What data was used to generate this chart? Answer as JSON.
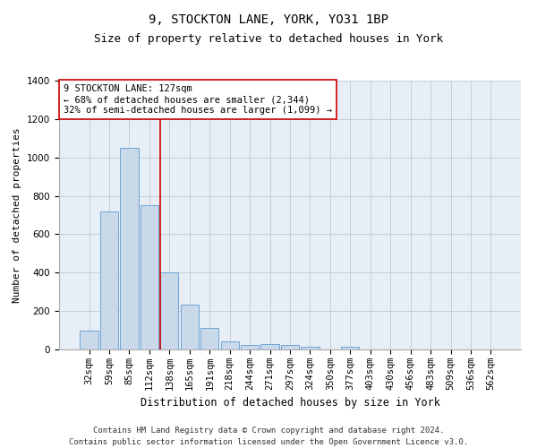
{
  "title": "9, STOCKTON LANE, YORK, YO31 1BP",
  "subtitle": "Size of property relative to detached houses in York",
  "xlabel": "Distribution of detached houses by size in York",
  "ylabel": "Number of detached properties",
  "categories": [
    "32sqm",
    "59sqm",
    "85sqm",
    "112sqm",
    "138sqm",
    "165sqm",
    "191sqm",
    "218sqm",
    "244sqm",
    "271sqm",
    "297sqm",
    "324sqm",
    "350sqm",
    "377sqm",
    "403sqm",
    "430sqm",
    "456sqm",
    "483sqm",
    "509sqm",
    "536sqm",
    "562sqm"
  ],
  "values": [
    100,
    720,
    1050,
    750,
    400,
    235,
    110,
    40,
    25,
    30,
    25,
    15,
    0,
    15,
    0,
    0,
    0,
    0,
    0,
    0,
    0
  ],
  "bar_color": "#c9d9ea",
  "bar_edge_color": "#5b9bd5",
  "ylim": [
    0,
    1400
  ],
  "yticks": [
    0,
    200,
    400,
    600,
    800,
    1000,
    1200,
    1400
  ],
  "red_line_x": 3.56,
  "annotation_title": "9 STOCKTON LANE: 127sqm",
  "annotation_line1": "← 68% of detached houses are smaller (2,344)",
  "annotation_line2": "32% of semi-detached houses are larger (1,099) →",
  "red_line_color": "#cc0000",
  "annotation_box_color": "#ffffff",
  "annotation_box_edge_color": "#cc0000",
  "grid_color": "#c0c8d8",
  "background_color": "#e8eef5",
  "footer_line1": "Contains HM Land Registry data © Crown copyright and database right 2024.",
  "footer_line2": "Contains public sector information licensed under the Open Government Licence v3.0.",
  "title_fontsize": 10,
  "subtitle_fontsize": 9,
  "xlabel_fontsize": 8.5,
  "ylabel_fontsize": 8,
  "tick_fontsize": 7.5,
  "annotation_fontsize": 7.5,
  "footer_fontsize": 6.5
}
